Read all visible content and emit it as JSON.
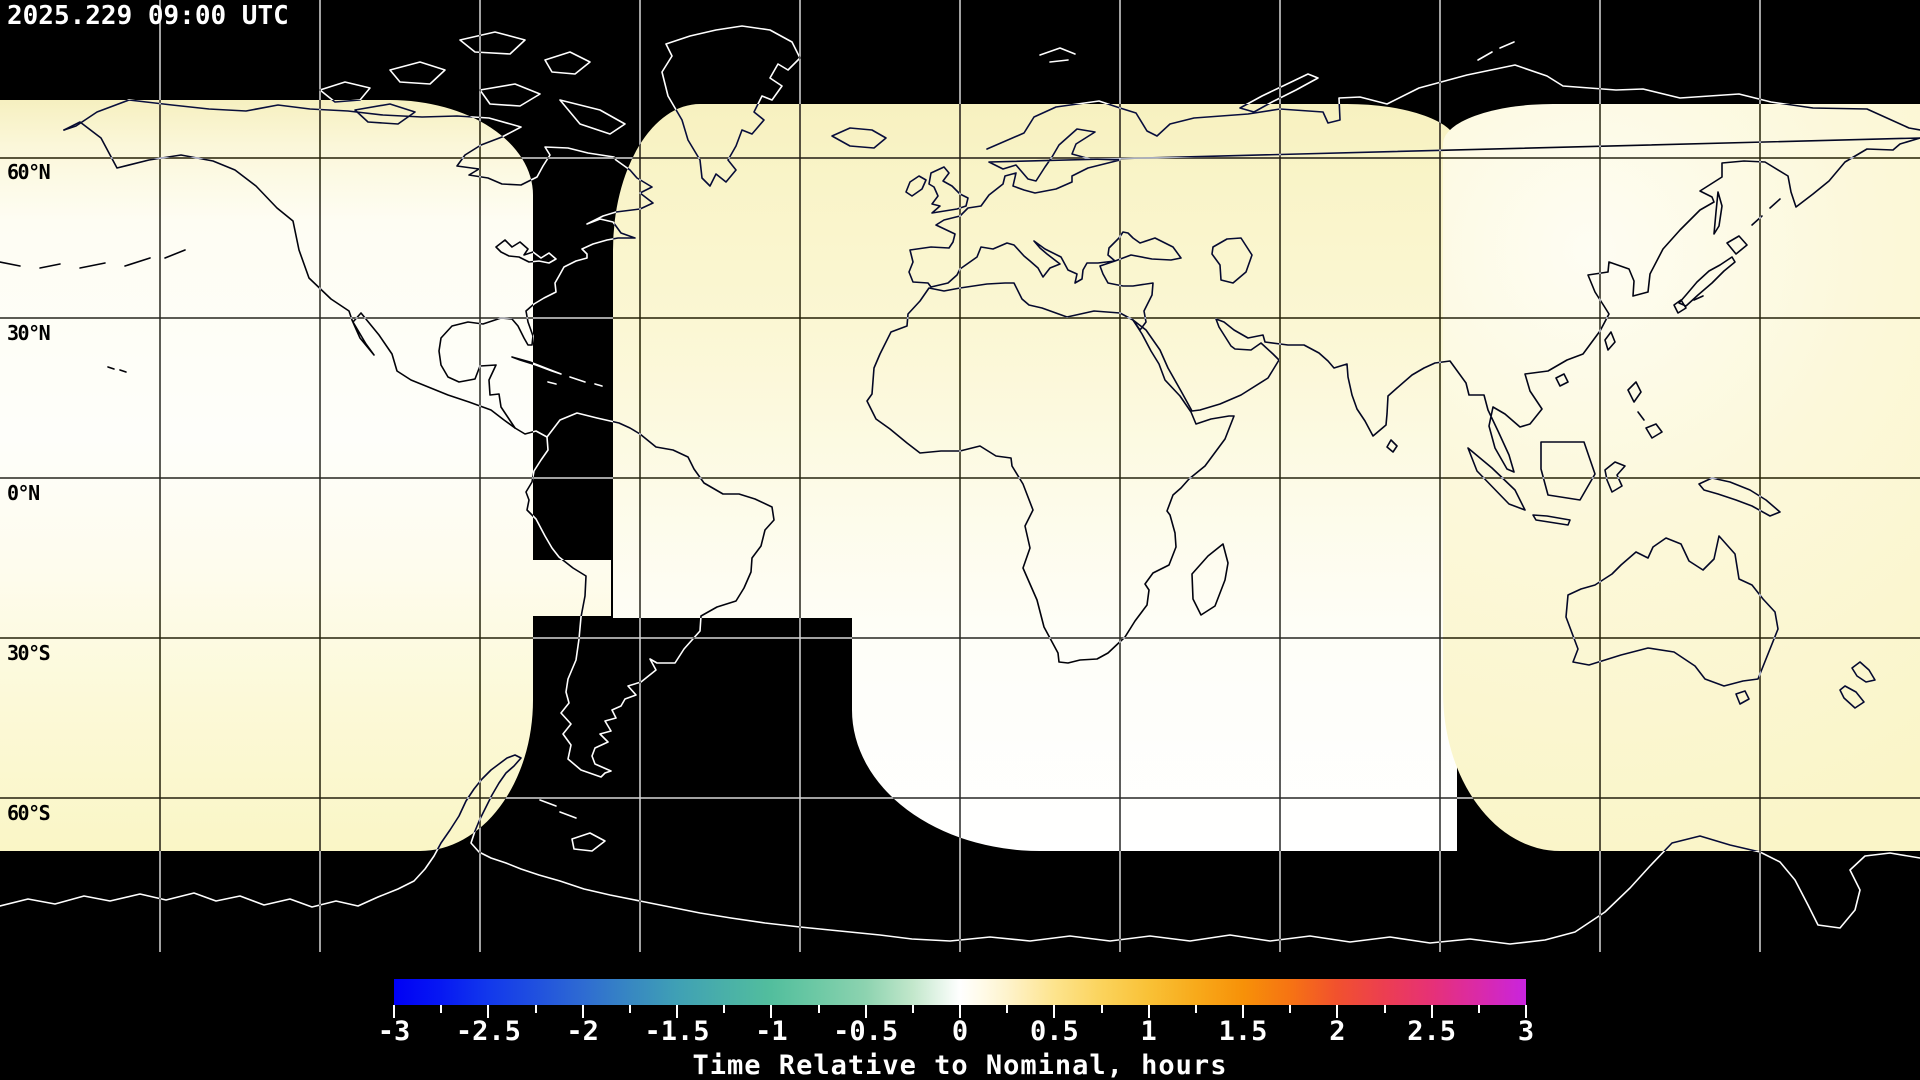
{
  "title_bar": {
    "timestamp": "2025.229 09:00 UTC"
  },
  "map": {
    "projection": "equirectangular world map, 180W-180E, 90N-90S",
    "background_color": "#000000",
    "gridline_color": "#d8d8d8",
    "grid": {
      "lon_step_deg": 30,
      "lat_step_deg": 30
    },
    "latitude_labels": [
      {
        "text": "60°N"
      },
      {
        "text": "30°N"
      },
      {
        "text": "0°N"
      },
      {
        "text": "30°S"
      },
      {
        "text": "60°S"
      }
    ],
    "coverage_regions": [
      {
        "name": "west-swath",
        "approx_value_hours": "0 near north, +0.2 to +0.3 in south",
        "fill": "white fading to pale yellow"
      },
      {
        "name": "center-swath",
        "approx_value_hours": "+0.3 in north fading to 0 in south",
        "fill": "pale yellow fading to white"
      },
      {
        "name": "east-swath",
        "approx_value_hours": "+0.1 to +0.3",
        "fill": "pale yellow, whiter near northwest"
      },
      {
        "name": "no-coverage",
        "approx_value_hours": "no data",
        "fill": "#000000"
      }
    ],
    "coverage_colors": {
      "nominal_white": "#ffffff",
      "late_cream": "#faf5c8"
    }
  },
  "colorbar": {
    "title": "Time Relative to Nominal, hours",
    "min": -3,
    "max": 3,
    "major_tick_step": 0.5,
    "minor_tick_step": 0.25,
    "tick_labels": [
      "-3",
      "-2.5",
      "-2",
      "-1.5",
      "-1",
      "-0.5",
      "0",
      "0.5",
      "1",
      "1.5",
      "2",
      "2.5",
      "3"
    ],
    "gradient_stops": [
      "#0000f5",
      "#1238ec",
      "#2e6bd2",
      "#3fa0b5",
      "#52be9d",
      "#8dd3b0",
      "#c2e7cb",
      "#ffffff",
      "#fde48e",
      "#f9c136",
      "#f79108",
      "#f1512e",
      "#e63177",
      "#c924de"
    ]
  }
}
